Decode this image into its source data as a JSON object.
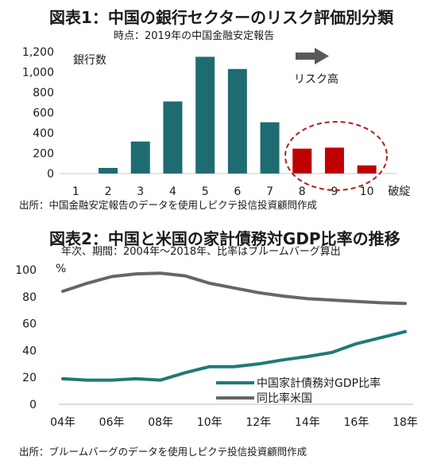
{
  "chart1": {
    "title": "図表1：中国の銀行セクターのリスク評価別分類",
    "subtitle": "時点：2019年の中国金融安定報告",
    "source": "出所：中国金融安定報告のデータを使用しピクテ投信投資顧問作成",
    "arrow_label": "リスク高",
    "colors": {
      "normal": "#1f6b72",
      "high_risk": "#c00000",
      "circle": "#b11e1e"
    }
  },
  "chart2": {
    "title": "図表2：中国と米国の家計債務対GDP比率の推移",
    "subtitle": "年次、期間：2004年～2018年、比率はブルームバーグ算出",
    "source": "出所：ブルームバーグのデータを使用しピクテ投信投資顧問作成",
    "colors": {
      "china": "#1f7a76",
      "us": "#666666"
    }
  },
  "chart_data": [
    {
      "type": "bar",
      "title": "図表1：中国の銀行セクターのリスク評価別分類",
      "ylabel": "銀行数",
      "ylim": [
        0,
        1200
      ],
      "yticks": [
        "0",
        "200",
        "400",
        "600",
        "800",
        "1,000",
        "1,200"
      ],
      "categories": [
        "1",
        "2",
        "3",
        "4",
        "5",
        "6",
        "7",
        "8",
        "9",
        "10",
        "破綻"
      ],
      "values": [
        0,
        55,
        315,
        710,
        1150,
        1030,
        505,
        245,
        255,
        80,
        0
      ],
      "highlight_categories": [
        "8",
        "9",
        "10"
      ],
      "grid": false
    },
    {
      "type": "line",
      "title": "図表2：中国と米国の家計債務対GDP比率の推移",
      "ylabel": "%",
      "ylim": [
        0,
        100
      ],
      "yticks": [
        "0",
        "20",
        "40",
        "60",
        "80",
        "100"
      ],
      "x": [
        2004,
        2005,
        2006,
        2007,
        2008,
        2009,
        2010,
        2011,
        2012,
        2013,
        2014,
        2015,
        2016,
        2017,
        2018
      ],
      "xticks": [
        "04年",
        "06年",
        "08年",
        "10年",
        "12年",
        "14年",
        "16年",
        "18年"
      ],
      "series": [
        {
          "name": "中国家計債務対GDP比率",
          "values": [
            19,
            18,
            18,
            19,
            18,
            23.5,
            28,
            28,
            30,
            33,
            35.5,
            38.5,
            45,
            49.5,
            54
          ]
        },
        {
          "name": "同比率米国",
          "values": [
            84,
            90,
            95,
            97,
            97.5,
            95.5,
            90,
            86.5,
            83,
            80.5,
            78.5,
            77.5,
            76.5,
            75.5,
            75
          ]
        }
      ],
      "legend": "bottom-right",
      "grid": false
    }
  ]
}
